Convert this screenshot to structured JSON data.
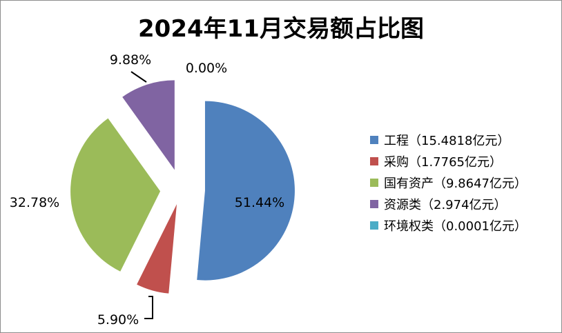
{
  "chart_data": {
    "type": "pie",
    "title": "2024年11月交易额占比图",
    "categories": [
      "工程",
      "采购",
      "国有资产",
      "资源类",
      "环境权类"
    ],
    "values": [
      15.4818,
      1.7765,
      9.8647,
      2.974,
      0.0001
    ],
    "unit": "亿元",
    "percent_labels": [
      "51.44%",
      "5.90%",
      "32.78%",
      "9.88%",
      "0.00%"
    ],
    "legend_labels": [
      "工程（15.4818亿元）",
      "采购（1.7765亿元）",
      "国有资产（9.8647亿元）",
      "资源类（2.974亿元）",
      "环境权类（0.0001亿元）"
    ],
    "colors": [
      "#4f81bd",
      "#c0504d",
      "#9bbb59",
      "#8064a2",
      "#4bacc6"
    ],
    "legend_position": "right",
    "exploded": true
  }
}
